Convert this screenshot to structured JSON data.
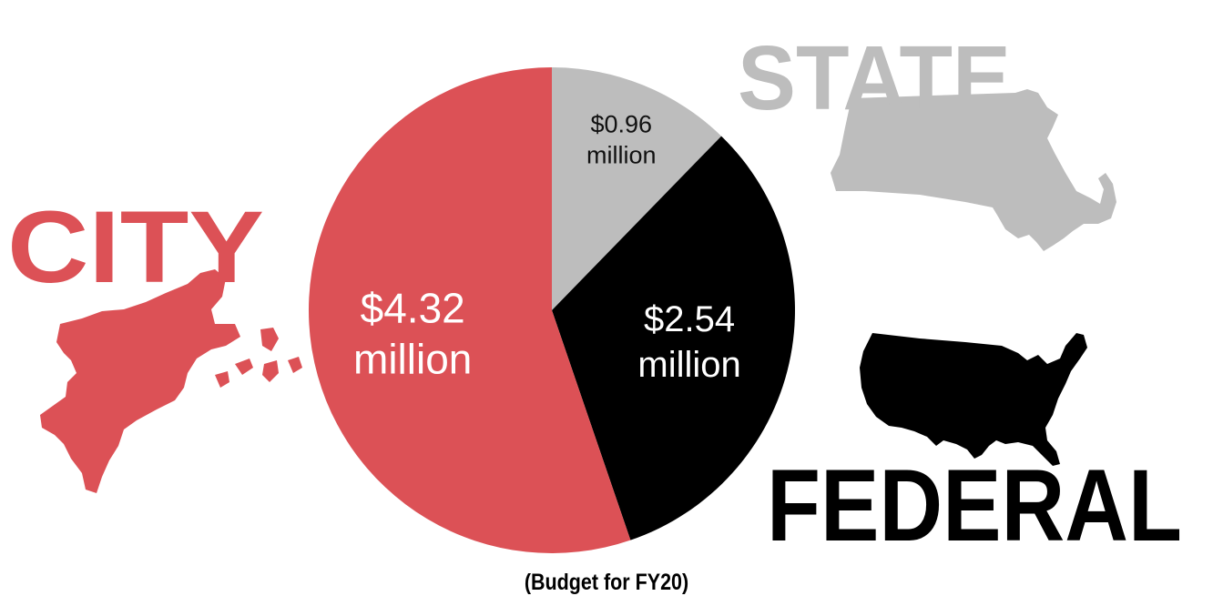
{
  "chart_data": {
    "type": "pie",
    "unit": "million",
    "slices": [
      {
        "name": "State",
        "value": 0.96,
        "label_value": "$0.96",
        "label_unit": "million",
        "color": "#bdbdbd",
        "text_color": "#111111"
      },
      {
        "name": "Federal",
        "value": 2.54,
        "label_value": "$2.54",
        "label_unit": "million",
        "color": "#000000",
        "text_color": "#ffffff"
      },
      {
        "name": "City",
        "value": 4.32,
        "label_value": "$4.32",
        "label_unit": "million",
        "color": "#dc5156",
        "text_color": "#ffffff"
      }
    ],
    "start_angle_deg": 0,
    "direction": "clockwise"
  },
  "labels": {
    "city": "CITY",
    "state": "STATE",
    "federal": "FEDERAL"
  },
  "caption": "(Budget for FY20)",
  "icons": {
    "city": "boston-map-icon",
    "state": "massachusetts-map-icon",
    "federal": "usa-map-icon"
  },
  "colors": {
    "city": "#dc5156",
    "state": "#bdbdbd",
    "federal": "#000000"
  }
}
